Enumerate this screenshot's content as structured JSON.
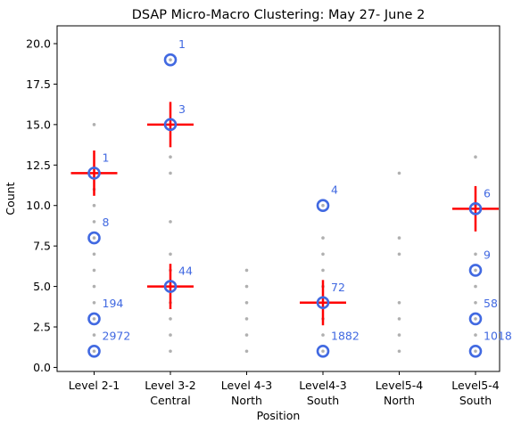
{
  "chart_data": {
    "type": "scatter",
    "title": "DSAP Micro-Macro Clustering: May 27- June 2",
    "xlabel": "Position",
    "ylabel": "Count",
    "ylim": [
      -0.25,
      21.1
    ],
    "yticks": [
      0.0,
      2.5,
      5.0,
      7.5,
      10.0,
      12.5,
      15.0,
      17.5,
      20.0
    ],
    "ytick_labels": [
      "0.0",
      "2.5",
      "5.0",
      "7.5",
      "10.0",
      "12.5",
      "15.0",
      "17.5",
      "20.0"
    ],
    "grid": false,
    "categories": [
      {
        "line1": "Level 2-1",
        "line2": ""
      },
      {
        "line1": "Level 3-2",
        "line2": "Central"
      },
      {
        "line1": "Level 4-3",
        "line2": "North"
      },
      {
        "line1": "Level4-3",
        "line2": "South"
      },
      {
        "line1": "Level5-4",
        "line2": "North"
      },
      {
        "line1": "Level5-4",
        "line2": "South"
      }
    ],
    "colors": {
      "micro_point": "#b0b0b0",
      "cluster_circle": "#4169e1",
      "cluster_label": "#4169e1",
      "macro_cross": "#ff0000"
    },
    "micro_points": [
      {
        "category": 0,
        "values": [
          1,
          2,
          3,
          4,
          5,
          6,
          7,
          8,
          9,
          10,
          11,
          12,
          15
        ]
      },
      {
        "category": 1,
        "values": [
          1,
          2,
          3,
          4,
          5,
          6,
          7,
          9,
          12,
          13,
          15,
          19
        ]
      },
      {
        "category": 2,
        "values": [
          1,
          2,
          3,
          4,
          5,
          6
        ]
      },
      {
        "category": 3,
        "values": [
          1,
          2,
          3,
          4,
          5,
          6,
          7,
          8,
          10
        ]
      },
      {
        "category": 4,
        "values": [
          1,
          2,
          3,
          4,
          7,
          8,
          12
        ]
      },
      {
        "category": 5,
        "values": [
          1,
          2,
          3,
          4,
          5,
          6,
          7,
          10,
          13
        ]
      }
    ],
    "clusters": [
      {
        "category": 0,
        "y": 1,
        "label": "2972"
      },
      {
        "category": 0,
        "y": 3,
        "label": "194"
      },
      {
        "category": 0,
        "y": 8,
        "label": "8"
      },
      {
        "category": 0,
        "y": 12,
        "label": "1"
      },
      {
        "category": 1,
        "y": 5,
        "label": "44"
      },
      {
        "category": 1,
        "y": 15,
        "label": "3"
      },
      {
        "category": 1,
        "y": 19,
        "label": "1"
      },
      {
        "category": 3,
        "y": 1,
        "label": "1882"
      },
      {
        "category": 3,
        "y": 4,
        "label": "72"
      },
      {
        "category": 3,
        "y": 10,
        "label": "4"
      },
      {
        "category": 5,
        "y": 1,
        "label": "1018"
      },
      {
        "category": 5,
        "y": 3,
        "label": "58"
      },
      {
        "category": 5,
        "y": 6,
        "label": "9"
      },
      {
        "category": 5,
        "y": 9.8,
        "label": "6"
      }
    ],
    "macro_clusters": [
      {
        "category": 0,
        "y": 12.0,
        "ylow": 10.6,
        "yhigh": 13.4
      },
      {
        "category": 1,
        "y": 15.0,
        "ylow": 13.6,
        "yhigh": 16.4
      },
      {
        "category": 1,
        "y": 5.0,
        "ylow": 3.6,
        "yhigh": 6.4
      },
      {
        "category": 3,
        "y": 4.0,
        "ylow": 2.6,
        "yhigh": 5.4
      },
      {
        "category": 5,
        "y": 9.8,
        "ylow": 8.4,
        "yhigh": 11.2
      }
    ]
  }
}
